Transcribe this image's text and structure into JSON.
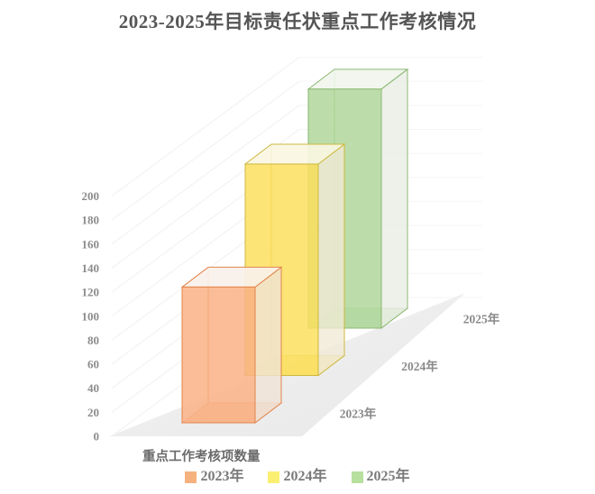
{
  "title": "2023-2025年目标责任状重点工作考核情况",
  "chart_data": {
    "type": "bar",
    "variant": "3d-oblique-boxes",
    "title": "2023-2025年目标责任状重点工作考核情况",
    "xlabel": "重点工作考核项数量",
    "ylabel": "",
    "categories": [
      "2023年",
      "2024年",
      "2025年"
    ],
    "series": [
      {
        "name": "2023年",
        "value": 113
      },
      {
        "name": "2024年",
        "value": 176
      },
      {
        "name": "2025年",
        "value": 199
      }
    ],
    "ylim": [
      0,
      200
    ],
    "ytick_interval": 20,
    "yticks": [
      0,
      20,
      40,
      60,
      80,
      100,
      120,
      140,
      160,
      180,
      200
    ],
    "grid": true,
    "legend_position": "bottom",
    "depth_axis_side": "right"
  },
  "legend": {
    "items": [
      {
        "label": "2023年",
        "color": "#f6b27e"
      },
      {
        "label": "2024年",
        "color": "#fbef72"
      },
      {
        "label": "2025年",
        "color": "#b7df9e"
      }
    ]
  },
  "colors": {
    "bar_faces": [
      {
        "front": "#f9b285",
        "stroke": "#e2854b",
        "top": "#f8f1ea",
        "right": "#efe2d6",
        "bottom": "#f3a877"
      },
      {
        "front": "#fbdf5e",
        "stroke": "#cdb83e",
        "top": "#faf6e2",
        "right": "#f0ead4",
        "bottom": "#f2d54e"
      },
      {
        "front": "#b0d79b",
        "stroke": "#8cb873",
        "top": "#f1f5ed",
        "right": "#e9eee3",
        "bottom": "#a3cb8e"
      }
    ],
    "floor": "#ececec",
    "gridline": "#ededf2",
    "title_text": "#555555",
    "axis_text": "#8c8c8c"
  }
}
